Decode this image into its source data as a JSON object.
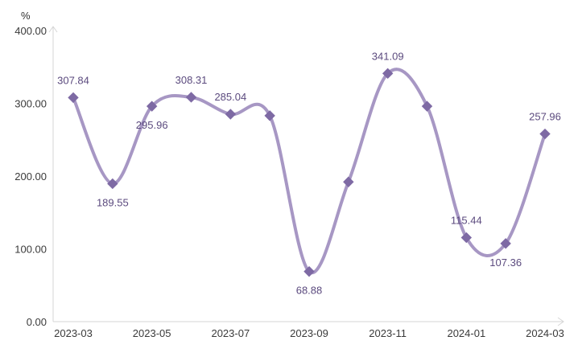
{
  "chart_data": {
    "type": "line",
    "ylabel": "%",
    "ylim": [
      0,
      400
    ],
    "yticks": [
      "0.00",
      "100.00",
      "200.00",
      "300.00",
      "400.00"
    ],
    "x": [
      "2023-03",
      "2023-04",
      "2023-05",
      "2023-06",
      "2023-07",
      "2023-08",
      "2023-09",
      "2023-10",
      "2023-11",
      "2023-12",
      "2024-01",
      "2024-02",
      "2024-03"
    ],
    "xtick_labels": [
      "2023-03",
      "2023-05",
      "2023-07",
      "2023-09",
      "2023-11",
      "2024-01",
      "2024-03"
    ],
    "series": [
      {
        "values": [
          307.84,
          189.55,
          295.96,
          308.31,
          285.04,
          283,
          68.88,
          192,
          341.09,
          296,
          115.44,
          107.36,
          257.96
        ]
      }
    ],
    "data_labels": [
      {
        "index": 0,
        "text": "307.84",
        "pos": "above"
      },
      {
        "index": 1,
        "text": "189.55",
        "pos": "below"
      },
      {
        "index": 2,
        "text": "295.96",
        "pos": "below"
      },
      {
        "index": 3,
        "text": "308.31",
        "pos": "above"
      },
      {
        "index": 4,
        "text": "285.04",
        "pos": "above"
      },
      {
        "index": 6,
        "text": "68.88",
        "pos": "below"
      },
      {
        "index": 8,
        "text": "341.09",
        "pos": "above"
      },
      {
        "index": 10,
        "text": "115.44",
        "pos": "above"
      },
      {
        "index": 11,
        "text": "107.36",
        "pos": "below"
      },
      {
        "index": 12,
        "text": "257.96",
        "pos": "above"
      }
    ],
    "grid": false,
    "legend": "none",
    "colors": {
      "line": "#a797c4",
      "marker": "#7e6aa4",
      "axis": "#d6d6d6",
      "tick_text": "#3a3a3a",
      "label_text": "#5b4a7e"
    }
  }
}
